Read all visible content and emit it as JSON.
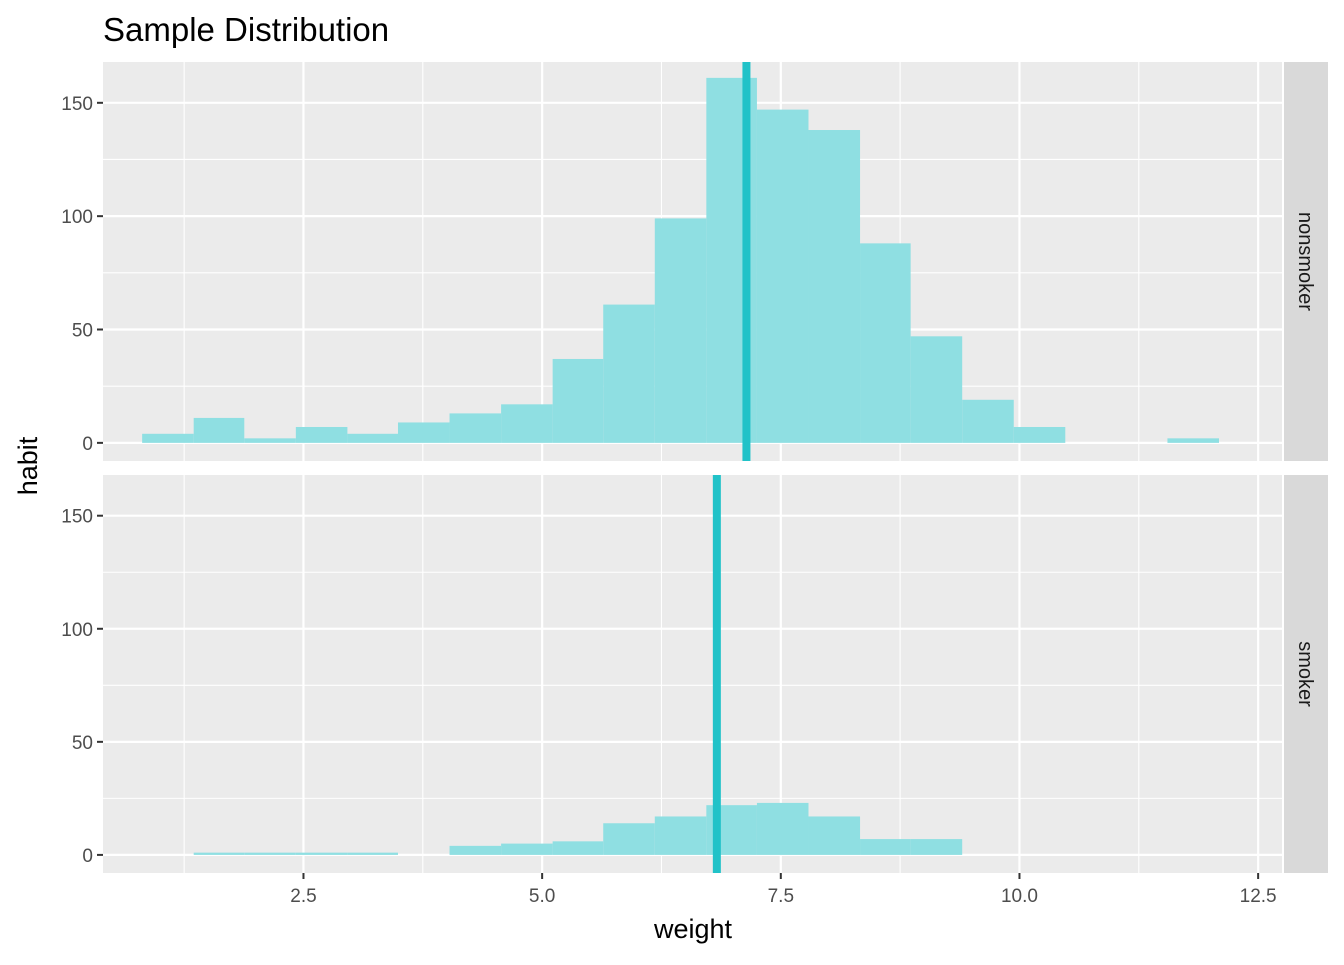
{
  "chart_data": {
    "type": "bar",
    "title": "Sample Distribution",
    "xlabel": "weight",
    "ylabel": "habit",
    "xlim": [
      0.4,
      12.75
    ],
    "ylim": [
      -8,
      168
    ],
    "x_ticks": [
      "2.5",
      "5.0",
      "7.5",
      "10.0",
      "12.5"
    ],
    "x_tick_values": [
      2.5,
      5.0,
      7.5,
      10.0,
      12.5
    ],
    "y_ticks": [
      "0",
      "50",
      "100",
      "150"
    ],
    "y_tick_values": [
      0,
      50,
      100,
      150
    ],
    "grid": true,
    "bar_color": "#8fdfe2",
    "mean_line_color": "#21c2c8",
    "panel_background": "#ebebeb",
    "strip_background": "#d9d9d9",
    "bin_width": 0.54,
    "panels": [
      {
        "strip_label": "nonsmoker",
        "mean": 7.14,
        "bins": [
          {
            "x0": 0.81,
            "x1": 1.35,
            "count": 4
          },
          {
            "x0": 1.35,
            "x1": 1.88,
            "count": 11
          },
          {
            "x0": 1.88,
            "x1": 2.42,
            "count": 2
          },
          {
            "x0": 2.42,
            "x1": 2.96,
            "count": 7
          },
          {
            "x0": 2.96,
            "x1": 3.49,
            "count": 4
          },
          {
            "x0": 3.49,
            "x1": 4.03,
            "count": 9
          },
          {
            "x0": 4.03,
            "x1": 4.57,
            "count": 13
          },
          {
            "x0": 4.57,
            "x1": 5.11,
            "count": 17
          },
          {
            "x0": 5.11,
            "x1": 5.64,
            "count": 37
          },
          {
            "x0": 5.64,
            "x1": 6.18,
            "count": 61
          },
          {
            "x0": 6.18,
            "x1": 6.72,
            "count": 99
          },
          {
            "x0": 6.72,
            "x1": 7.25,
            "count": 161
          },
          {
            "x0": 7.25,
            "x1": 7.79,
            "count": 147
          },
          {
            "x0": 7.79,
            "x1": 8.33,
            "count": 138
          },
          {
            "x0": 8.33,
            "x1": 8.86,
            "count": 88
          },
          {
            "x0": 8.86,
            "x1": 9.4,
            "count": 47
          },
          {
            "x0": 9.4,
            "x1": 9.94,
            "count": 19
          },
          {
            "x0": 9.94,
            "x1": 10.48,
            "count": 7
          },
          {
            "x0": 11.55,
            "x1": 12.09,
            "count": 2
          }
        ]
      },
      {
        "strip_label": "smoker",
        "mean": 6.83,
        "bins": [
          {
            "x0": 1.35,
            "x1": 1.88,
            "count": 1
          },
          {
            "x0": 1.88,
            "x1": 2.42,
            "count": 1
          },
          {
            "x0": 2.42,
            "x1": 2.96,
            "count": 1
          },
          {
            "x0": 2.96,
            "x1": 3.49,
            "count": 1
          },
          {
            "x0": 4.03,
            "x1": 4.57,
            "count": 4
          },
          {
            "x0": 4.57,
            "x1": 5.11,
            "count": 5
          },
          {
            "x0": 5.11,
            "x1": 5.64,
            "count": 6
          },
          {
            "x0": 5.64,
            "x1": 6.18,
            "count": 14
          },
          {
            "x0": 6.18,
            "x1": 6.72,
            "count": 17
          },
          {
            "x0": 6.72,
            "x1": 7.25,
            "count": 22
          },
          {
            "x0": 7.25,
            "x1": 7.79,
            "count": 23
          },
          {
            "x0": 7.79,
            "x1": 8.33,
            "count": 17
          },
          {
            "x0": 8.33,
            "x1": 8.86,
            "count": 7
          },
          {
            "x0": 8.86,
            "x1": 9.4,
            "count": 7
          }
        ]
      }
    ]
  }
}
